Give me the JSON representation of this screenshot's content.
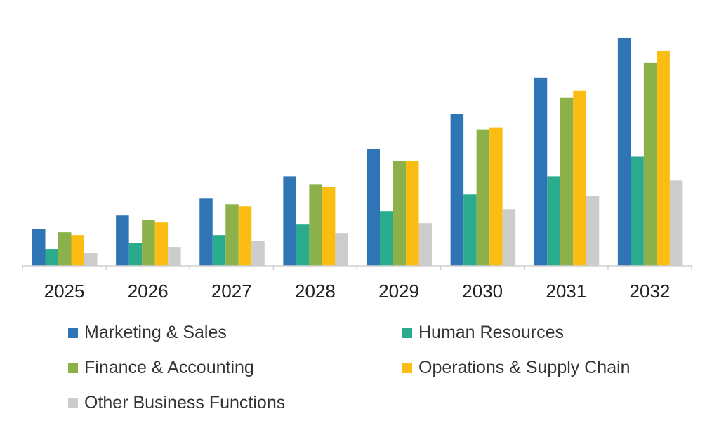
{
  "chart_data": {
    "type": "bar",
    "categories": [
      "2025",
      "2026",
      "2027",
      "2028",
      "2029",
      "2030",
      "2031",
      "2032"
    ],
    "series": [
      {
        "name": "Marketing & Sales",
        "color": "#2f75b5",
        "values": [
          53,
          72,
          97,
          128,
          167,
          217,
          269,
          326
        ]
      },
      {
        "name": "Human Resources",
        "color": "#2bab8e",
        "values": [
          24,
          33,
          44,
          59,
          78,
          102,
          128,
          156
        ]
      },
      {
        "name": "Finance & Accounting",
        "color": "#8db14a",
        "values": [
          48,
          66,
          88,
          116,
          150,
          195,
          241,
          290
        ]
      },
      {
        "name": "Operations & Supply Chain",
        "color": "#fbbd12",
        "values": [
          44,
          62,
          85,
          113,
          150,
          198,
          250,
          308
        ]
      },
      {
        "name": "Other Business Functions",
        "color": "#cccccc",
        "values": [
          19,
          27,
          36,
          47,
          61,
          81,
          100,
          122
        ]
      }
    ],
    "title": "",
    "xlabel": "",
    "ylabel": "",
    "ylim": [
      0,
      330
    ],
    "grid": false,
    "legend_position": "bottom"
  }
}
